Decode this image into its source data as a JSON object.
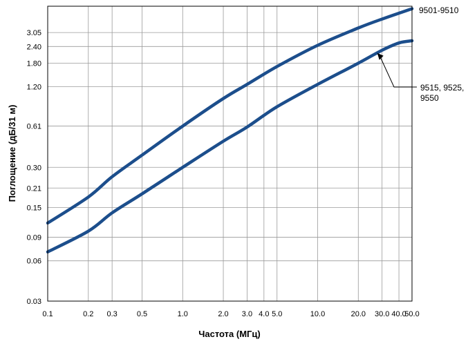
{
  "chart_data": {
    "type": "line",
    "title": "",
    "xlabel": "Частота (МГц)",
    "ylabel": "Поглощение (дБ/31 м)",
    "x_scale": "log",
    "y_scale": "log",
    "xlim": [
      0.1,
      50.0
    ],
    "ylim": [
      0.03,
      4.8
    ],
    "grid": true,
    "legend": "none",
    "x_ticks": [
      {
        "value": 0.1,
        "label": "0.1"
      },
      {
        "value": 0.2,
        "label": "0.2"
      },
      {
        "value": 0.3,
        "label": "0.3"
      },
      {
        "value": 0.5,
        "label": "0.5"
      },
      {
        "value": 1.0,
        "label": "1.0"
      },
      {
        "value": 2.0,
        "label": "2.0"
      },
      {
        "value": 3.0,
        "label": "3.0"
      },
      {
        "value": 4.0,
        "label": "4.0"
      },
      {
        "value": 5.0,
        "label": "5.0"
      },
      {
        "value": 10.0,
        "label": "10.0"
      },
      {
        "value": 20.0,
        "label": "20.0"
      },
      {
        "value": 30.0,
        "label": "30.0"
      },
      {
        "value": 40.0,
        "label": "40.0"
      },
      {
        "value": 50.0,
        "label": "50.0"
      }
    ],
    "y_ticks": [
      {
        "value": 0.03,
        "label": "0.03"
      },
      {
        "value": 0.06,
        "label": "0.06"
      },
      {
        "value": 0.09,
        "label": "0.09"
      },
      {
        "value": 0.15,
        "label": "0.15"
      },
      {
        "value": 0.21,
        "label": "0.21"
      },
      {
        "value": 0.3,
        "label": "0.30"
      },
      {
        "value": 0.61,
        "label": "0.61"
      },
      {
        "value": 1.2,
        "label": "1.20"
      },
      {
        "value": 1.8,
        "label": "1.80"
      },
      {
        "value": 2.4,
        "label": "2.40"
      },
      {
        "value": 3.05,
        "label": "3.05"
      }
    ],
    "series": [
      {
        "name": "9501-9510",
        "color": "#1c4e8c",
        "x": [
          0.1,
          0.2,
          0.3,
          0.5,
          1.0,
          2.0,
          3.0,
          5.0,
          10.0,
          20.0,
          30.0,
          50.0
        ],
        "y": [
          0.115,
          0.18,
          0.255,
          0.37,
          0.61,
          0.98,
          1.25,
          1.7,
          2.45,
          3.3,
          3.85,
          4.6
        ]
      },
      {
        "name": "9515, 9525, 9550",
        "color": "#1c4e8c",
        "x": [
          0.1,
          0.2,
          0.3,
          0.5,
          1.0,
          2.0,
          3.0,
          5.0,
          10.0,
          20.0,
          30.0,
          40.0,
          50.0
        ],
        "y": [
          0.07,
          0.1,
          0.137,
          0.19,
          0.3,
          0.47,
          0.6,
          0.85,
          1.25,
          1.8,
          2.25,
          2.55,
          2.65
        ]
      }
    ],
    "annotations": [
      {
        "series_index": 0,
        "label": "9501-9510",
        "point": [
          50.0,
          4.6
        ]
      },
      {
        "series_index": 1,
        "label": "9515, 9525, 9550",
        "point": [
          27.0,
          2.25
        ]
      }
    ]
  }
}
